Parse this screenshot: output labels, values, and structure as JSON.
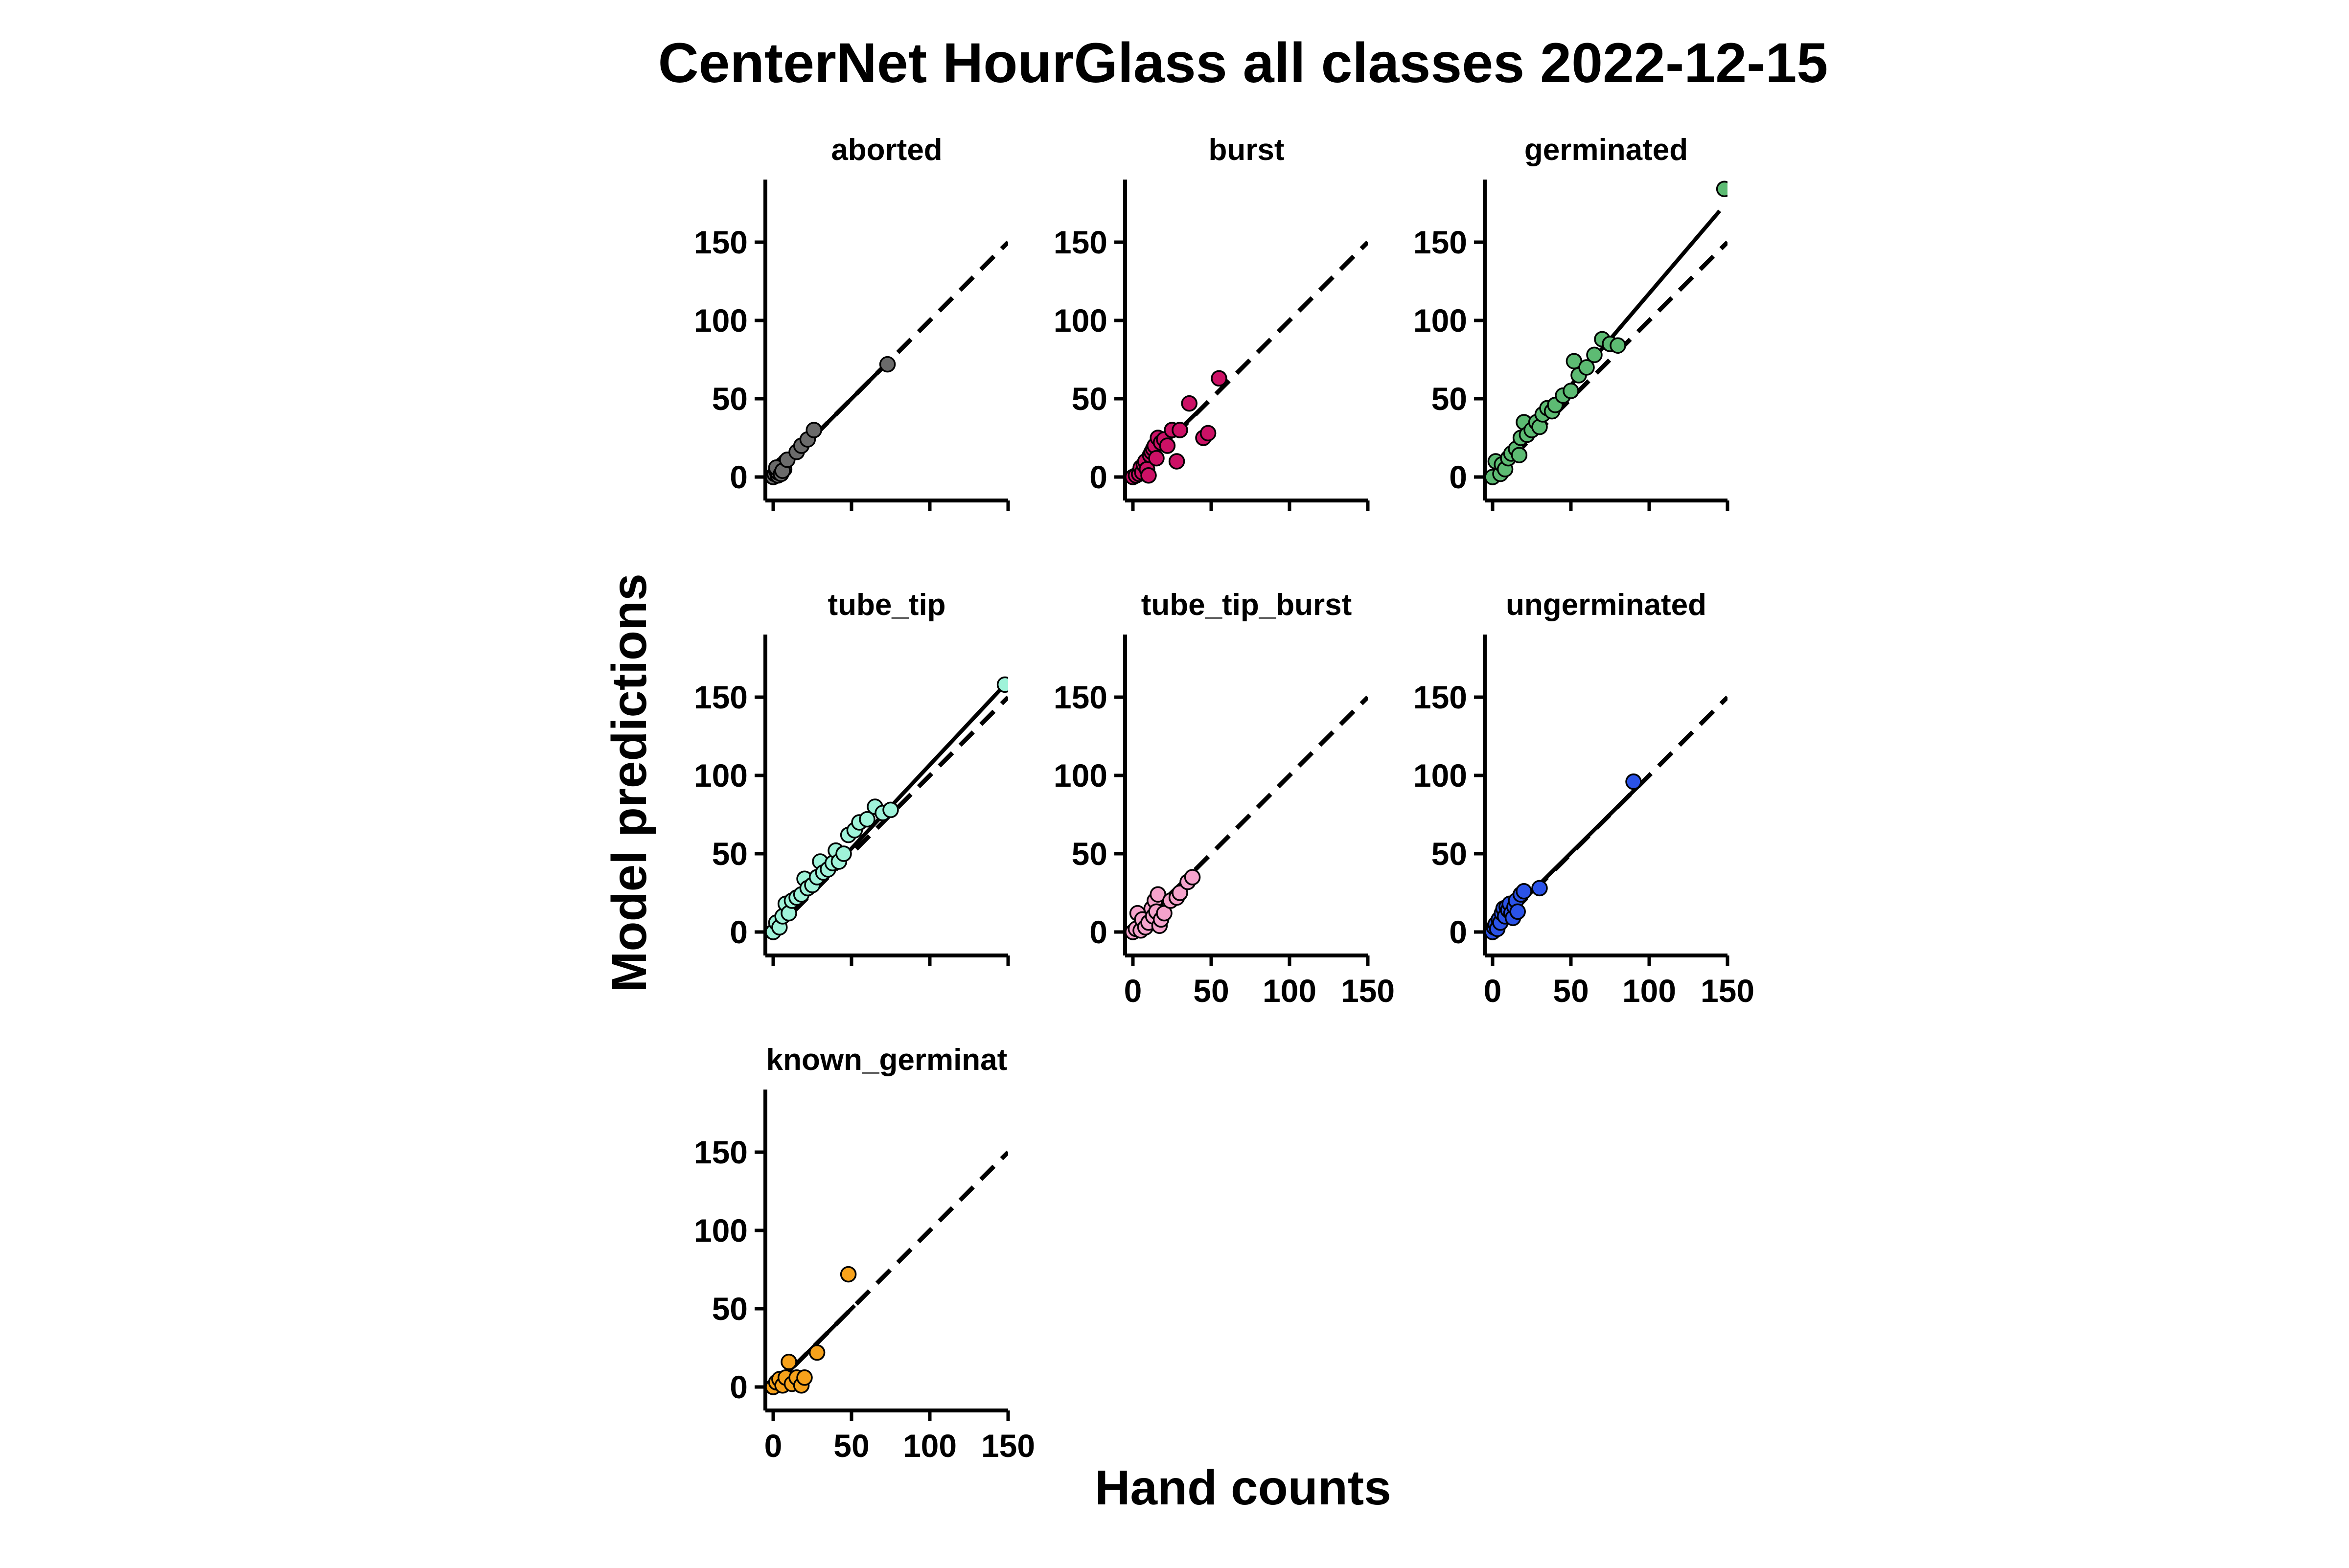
{
  "figure": {
    "title": "CenterNet HourGlass all classes 2022-12-15",
    "xlabel": "Hand counts",
    "ylabel": "Model predictions"
  },
  "chart_data": {
    "type": "scatter",
    "xlim": [
      -5,
      150
    ],
    "ylim": [
      -15,
      190
    ],
    "xticks": [
      0,
      50,
      100,
      150
    ],
    "yticks": [
      0,
      50,
      100,
      150
    ],
    "reference_line": "y = x (dashed)",
    "fit_line": "least-squares (solid)",
    "grid": false,
    "panels": [
      {
        "name": "aborted",
        "color": "#6b6b6b",
        "show_x_labels": false,
        "fit": [
          0,
          72
        ],
        "points": [
          [
            0,
            0
          ],
          [
            1,
            2
          ],
          [
            2,
            4
          ],
          [
            3,
            1
          ],
          [
            4,
            6
          ],
          [
            5,
            3
          ],
          [
            6,
            8
          ],
          [
            7,
            5
          ],
          [
            3,
            3
          ],
          [
            8,
            10
          ],
          [
            2,
            6
          ],
          [
            5,
            2
          ],
          [
            6,
            4
          ],
          [
            9,
            11
          ],
          [
            15,
            16
          ],
          [
            18,
            20
          ],
          [
            22,
            24
          ],
          [
            26,
            30
          ],
          [
            73,
            72
          ]
        ]
      },
      {
        "name": "burst",
        "color": "#cc1166",
        "show_x_labels": false,
        "fit": [
          2,
          47
        ],
        "points": [
          [
            0,
            0
          ],
          [
            2,
            1
          ],
          [
            4,
            2
          ],
          [
            5,
            6
          ],
          [
            6,
            3
          ],
          [
            7,
            8
          ],
          [
            8,
            10
          ],
          [
            9,
            5
          ],
          [
            10,
            1
          ],
          [
            11,
            14
          ],
          [
            12,
            16
          ],
          [
            13,
            18
          ],
          [
            14,
            20
          ],
          [
            15,
            12
          ],
          [
            16,
            25
          ],
          [
            18,
            22
          ],
          [
            20,
            24
          ],
          [
            22,
            20
          ],
          [
            25,
            30
          ],
          [
            28,
            10
          ],
          [
            30,
            30
          ],
          [
            36,
            47
          ],
          [
            45,
            25
          ],
          [
            48,
            28
          ],
          [
            55,
            63
          ]
        ]
      },
      {
        "name": "germinated",
        "color": "#5dbb73",
        "show_x_labels": false,
        "fit": [
          145,
          170
        ],
        "points": [
          [
            0,
            0
          ],
          [
            2,
            10
          ],
          [
            5,
            2
          ],
          [
            6,
            8
          ],
          [
            8,
            5
          ],
          [
            10,
            12
          ],
          [
            12,
            15
          ],
          [
            15,
            18
          ],
          [
            17,
            14
          ],
          [
            18,
            25
          ],
          [
            20,
            35
          ],
          [
            22,
            27
          ],
          [
            25,
            30
          ],
          [
            28,
            35
          ],
          [
            30,
            32
          ],
          [
            32,
            40
          ],
          [
            35,
            44
          ],
          [
            38,
            42
          ],
          [
            40,
            46
          ],
          [
            45,
            52
          ],
          [
            50,
            55
          ],
          [
            52,
            74
          ],
          [
            55,
            65
          ],
          [
            60,
            70
          ],
          [
            65,
            78
          ],
          [
            70,
            88
          ],
          [
            75,
            85
          ],
          [
            80,
            84
          ],
          [
            148,
            184
          ]
        ]
      },
      {
        "name": "tube_tip",
        "color": "#9ff3d9",
        "show_x_labels": false,
        "fit": [
          148,
          158
        ],
        "points": [
          [
            0,
            0
          ],
          [
            2,
            6
          ],
          [
            4,
            3
          ],
          [
            6,
            10
          ],
          [
            8,
            18
          ],
          [
            10,
            12
          ],
          [
            12,
            20
          ],
          [
            15,
            22
          ],
          [
            18,
            24
          ],
          [
            20,
            34
          ],
          [
            22,
            28
          ],
          [
            25,
            30
          ],
          [
            28,
            35
          ],
          [
            30,
            45
          ],
          [
            32,
            38
          ],
          [
            35,
            40
          ],
          [
            38,
            44
          ],
          [
            40,
            52
          ],
          [
            42,
            45
          ],
          [
            45,
            50
          ],
          [
            48,
            62
          ],
          [
            52,
            65
          ],
          [
            55,
            70
          ],
          [
            60,
            72
          ],
          [
            65,
            80
          ],
          [
            70,
            76
          ],
          [
            75,
            78
          ],
          [
            148,
            158
          ]
        ]
      },
      {
        "name": "tube_tip_burst",
        "color": "#f5a3cc",
        "show_x_labels": true,
        "fit": [
          2,
          36
        ],
        "points": [
          [
            0,
            0
          ],
          [
            2,
            2
          ],
          [
            3,
            12
          ],
          [
            5,
            1
          ],
          [
            6,
            8
          ],
          [
            8,
            3
          ],
          [
            10,
            6
          ],
          [
            12,
            15
          ],
          [
            13,
            10
          ],
          [
            14,
            20
          ],
          [
            15,
            13
          ],
          [
            16,
            24
          ],
          [
            17,
            4
          ],
          [
            18,
            8
          ],
          [
            20,
            12
          ],
          [
            24,
            20
          ],
          [
            28,
            22
          ],
          [
            30,
            25
          ],
          [
            35,
            32
          ],
          [
            38,
            35
          ]
        ]
      },
      {
        "name": "ungerminated",
        "color": "#2b53e8",
        "show_x_labels": true,
        "fit": [
          1,
          93
        ],
        "points": [
          [
            0,
            0
          ],
          [
            1,
            3
          ],
          [
            2,
            5
          ],
          [
            3,
            2
          ],
          [
            4,
            8
          ],
          [
            5,
            6
          ],
          [
            6,
            12
          ],
          [
            7,
            15
          ],
          [
            8,
            10
          ],
          [
            9,
            16
          ],
          [
            10,
            14
          ],
          [
            11,
            18
          ],
          [
            12,
            12
          ],
          [
            13,
            9
          ],
          [
            14,
            16
          ],
          [
            15,
            20
          ],
          [
            16,
            13
          ],
          [
            18,
            24
          ],
          [
            20,
            26
          ],
          [
            30,
            28
          ],
          [
            90,
            96
          ]
        ]
      },
      {
        "name": "known_germinated",
        "display_name": "known_germinat",
        "color": "#f7a21b",
        "show_x_labels": true,
        "fit": [
          0,
          52
        ],
        "points": [
          [
            0,
            0
          ],
          [
            2,
            3
          ],
          [
            4,
            5
          ],
          [
            6,
            1
          ],
          [
            8,
            6
          ],
          [
            10,
            16
          ],
          [
            12,
            2
          ],
          [
            15,
            6
          ],
          [
            18,
            1
          ],
          [
            20,
            6
          ],
          [
            28,
            22
          ],
          [
            48,
            72
          ]
        ]
      }
    ]
  }
}
